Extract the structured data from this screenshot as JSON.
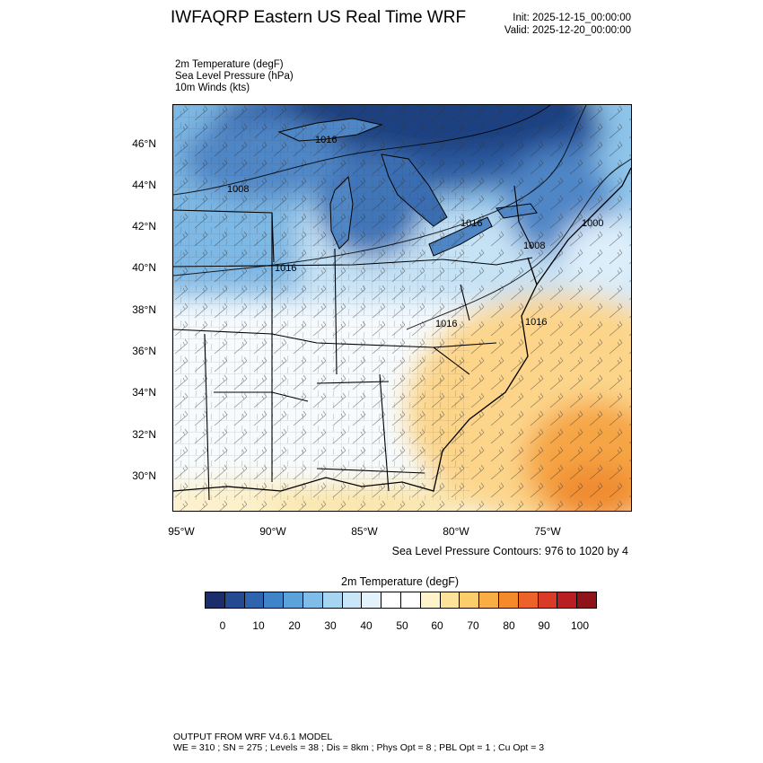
{
  "header": {
    "title": "IWFAQRP Eastern US Real Time WRF",
    "init": "Init: 2025-12-15_00:00:00",
    "valid": "Valid: 2025-12-20_00:00:00"
  },
  "fields": {
    "temp": "2m Temperature   (degF)",
    "slp": "Sea Level Pressure   (hPa)",
    "wind": "10m Winds   (kts)"
  },
  "axes": {
    "lat_ticks": [
      "46°N",
      "44°N",
      "42°N",
      "40°N",
      "38°N",
      "36°N",
      "34°N",
      "32°N",
      "30°N"
    ],
    "lon_ticks": [
      "95°W",
      "90°W",
      "85°W",
      "80°W",
      "75°W"
    ]
  },
  "isobar_labels": [
    "1016",
    "1008",
    "1016",
    "1016",
    "1000",
    "1008",
    "1016",
    "1016"
  ],
  "slp_caption": "Sea Level Pressure Contours: 976 to 1020 by 4",
  "colorbar": {
    "title": "2m Temperature  (degF)",
    "labels": [
      "0",
      "10",
      "20",
      "30",
      "40",
      "50",
      "60",
      "70",
      "80",
      "90",
      "100"
    ],
    "colors": [
      "#1b2e6b",
      "#244a91",
      "#2e64ae",
      "#3f84c8",
      "#5aa2da",
      "#7fbde8",
      "#a6d5f2",
      "#c8e6f8",
      "#e4f2fb",
      "#ffffff",
      "#ffffff",
      "#fff3cc",
      "#fde39a",
      "#fccd6b",
      "#f9ae45",
      "#f58a2b",
      "#ec6229",
      "#d93b27",
      "#b91f22",
      "#8e1419"
    ]
  },
  "footer": {
    "line1": "OUTPUT FROM WRF V4.6.1 MODEL",
    "line2": "WE = 310 ; SN = 275 ; Levels = 38 ; Dis = 8km ; Phys Opt = 8 ; PBL Opt = 1 ; Cu Opt = 3"
  }
}
